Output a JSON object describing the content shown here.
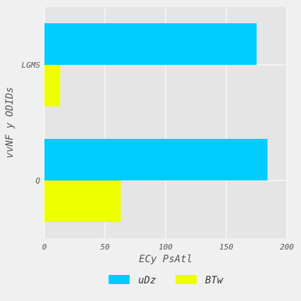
{
  "chart_data": {
    "type": "bar",
    "orientation": "horizontal",
    "categories": [
      "Q",
      "LGMS"
    ],
    "series": [
      {
        "name": "uDz",
        "values": [
          184,
          175
        ],
        "color": "#00ccff"
      },
      {
        "name": "BTw",
        "values": [
          63,
          13
        ],
        "color": "#eeff00"
      }
    ],
    "xlabel": "ECy PsAtl",
    "ylabel": "vvNF y ODIDs",
    "xlim": [
      0,
      200
    ],
    "xticks": [
      0,
      50,
      100,
      150,
      200
    ],
    "grid": true,
    "legend_position": "bottom",
    "plot_background": "#e5e5e5",
    "page_background": "#f0f0f0"
  }
}
